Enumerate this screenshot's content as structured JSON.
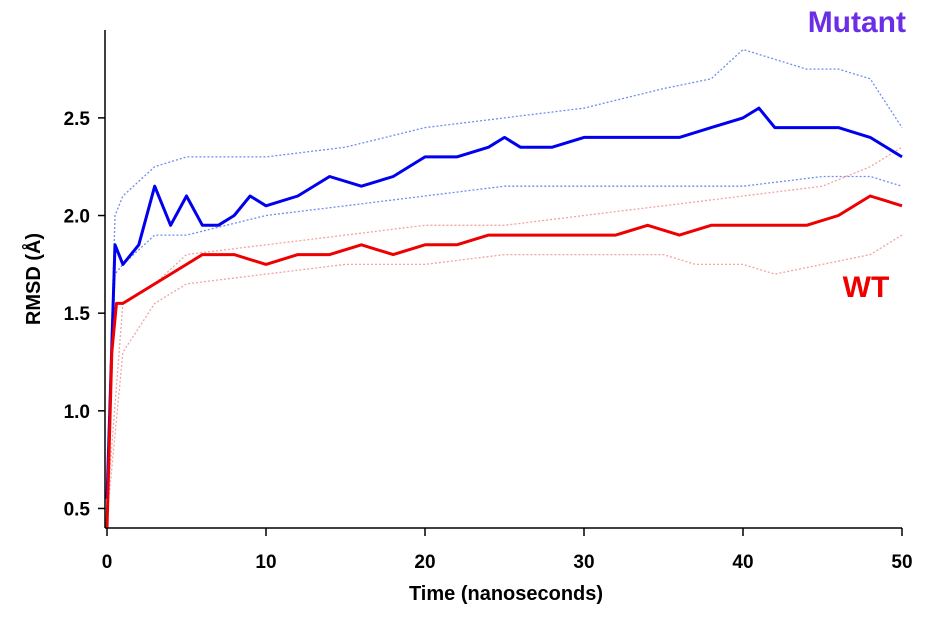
{
  "chart_data": {
    "type": "line",
    "xlabel": "Time (nanoseconds)",
    "ylabel": "RMSD (Å)",
    "xlim": [
      0,
      50
    ],
    "ylim": [
      0.4,
      2.95
    ],
    "xticks": [
      "0",
      "10",
      "20",
      "30",
      "40",
      "50"
    ],
    "yticks": [
      "0.5",
      "1.0",
      "1.5",
      "2.0",
      "2.5"
    ],
    "grid": false,
    "legend": "direct labels (Mutant top-right, WT right)",
    "series": [
      {
        "name": "Mutant",
        "color": "#0000ee",
        "label_color": "#6a2ee6",
        "style": "solid",
        "x": [
          0,
          0.5,
          1,
          2,
          3,
          4,
          5,
          6,
          7,
          8,
          9,
          10,
          12,
          14,
          16,
          18,
          20,
          22,
          24,
          25,
          26,
          28,
          30,
          32,
          34,
          36,
          38,
          40,
          41,
          42,
          44,
          46,
          48,
          50
        ],
        "values": [
          0.55,
          1.85,
          1.75,
          1.85,
          2.15,
          1.95,
          2.1,
          1.95,
          1.95,
          2.0,
          2.1,
          2.05,
          2.1,
          2.2,
          2.15,
          2.2,
          2.3,
          2.3,
          2.35,
          2.4,
          2.35,
          2.35,
          2.4,
          2.4,
          2.4,
          2.4,
          2.45,
          2.5,
          2.55,
          2.45,
          2.45,
          2.45,
          2.4,
          2.3
        ]
      },
      {
        "name": "Mutant replicate band (upper)",
        "color": "#6f8ff0",
        "style": "dotted",
        "x": [
          0,
          0.5,
          1,
          3,
          5,
          10,
          15,
          20,
          25,
          30,
          35,
          38,
          40,
          42,
          44,
          46,
          48,
          50
        ],
        "values": [
          0.6,
          2.0,
          2.1,
          2.25,
          2.3,
          2.3,
          2.35,
          2.45,
          2.5,
          2.55,
          2.65,
          2.7,
          2.85,
          2.8,
          2.75,
          2.75,
          2.7,
          2.45
        ]
      },
      {
        "name": "Mutant replicate band (lower)",
        "color": "#6f8ff0",
        "style": "dotted",
        "x": [
          0,
          0.5,
          1,
          3,
          5,
          10,
          15,
          20,
          25,
          30,
          35,
          40,
          45,
          48,
          50
        ],
        "values": [
          0.5,
          1.7,
          1.75,
          1.9,
          1.9,
          2.0,
          2.05,
          2.1,
          2.15,
          2.15,
          2.15,
          2.15,
          2.2,
          2.2,
          2.15
        ]
      },
      {
        "name": "WT",
        "color": "#ee0000",
        "label_color": "#ee0000",
        "style": "solid",
        "x": [
          0,
          0.3,
          0.6,
          1,
          2,
          3,
          4,
          5,
          6,
          7,
          8,
          10,
          12,
          14,
          16,
          18,
          20,
          22,
          24,
          26,
          28,
          30,
          32,
          34,
          36,
          38,
          40,
          42,
          44,
          46,
          48,
          50
        ],
        "values": [
          0.4,
          1.3,
          1.55,
          1.55,
          1.6,
          1.65,
          1.7,
          1.75,
          1.8,
          1.8,
          1.8,
          1.75,
          1.8,
          1.8,
          1.85,
          1.8,
          1.85,
          1.85,
          1.9,
          1.9,
          1.9,
          1.9,
          1.9,
          1.95,
          1.9,
          1.95,
          1.95,
          1.95,
          1.95,
          2.0,
          2.1,
          2.05
        ]
      },
      {
        "name": "WT replicate band (upper)",
        "color": "#f2a3a3",
        "style": "dotted",
        "x": [
          0,
          1,
          3,
          5,
          10,
          15,
          20,
          25,
          30,
          35,
          40,
          45,
          48,
          50
        ],
        "values": [
          0.5,
          1.55,
          1.65,
          1.8,
          1.85,
          1.9,
          1.95,
          1.95,
          2.0,
          2.05,
          2.1,
          2.15,
          2.25,
          2.35
        ]
      },
      {
        "name": "WT replicate band (lower)",
        "color": "#f2a3a3",
        "style": "dotted",
        "x": [
          0,
          1,
          3,
          5,
          10,
          15,
          20,
          25,
          30,
          35,
          37,
          40,
          42,
          45,
          48,
          50
        ],
        "values": [
          0.45,
          1.3,
          1.55,
          1.65,
          1.7,
          1.75,
          1.75,
          1.8,
          1.8,
          1.8,
          1.75,
          1.75,
          1.7,
          1.75,
          1.8,
          1.9
        ]
      }
    ]
  }
}
